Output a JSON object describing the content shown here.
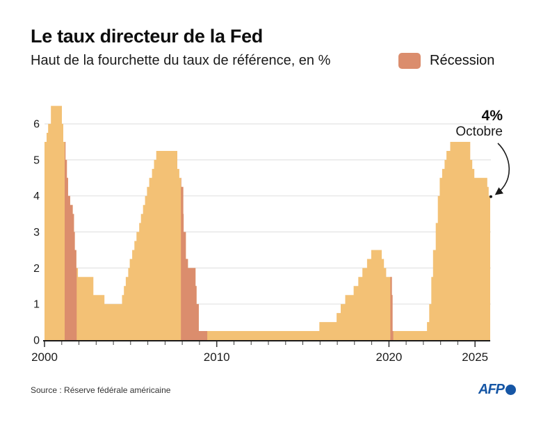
{
  "header": {
    "title": "Le taux directeur de la Fed",
    "subtitle": "Haut de la fourchette du taux de référence, en %"
  },
  "legend": {
    "label": "Récession",
    "color": "#DB8D6D"
  },
  "annotation": {
    "value_label": "4%",
    "month_label": "Octobre"
  },
  "footer": {
    "source": "Source : Réserve fédérale américaine",
    "logo": "AFP"
  },
  "brand": {
    "afp_blue": "#1656A5"
  },
  "chart_data": {
    "type": "area",
    "title": "Le taux directeur de la Fed",
    "subtitle": "Haut de la fourchette du taux de référence, en %",
    "series_name": "Haut de la fourchette du taux de référence de la Fed",
    "unit": "%",
    "grid": "horizontal",
    "legend_position": "top-right",
    "colors": {
      "area": "#F3C175",
      "recession": "#DB8D6D",
      "grid": "#E3E3E3",
      "axis": "#1A1A1A",
      "text": "#1A1A1A"
    },
    "xlim": [
      2000,
      2025.92
    ],
    "ylim": [
      0,
      6.6
    ],
    "yticks": [
      0,
      1,
      2,
      3,
      4,
      5,
      6
    ],
    "xticks_labeled": [
      2000,
      2010,
      2020,
      2025
    ],
    "xtick_step": 1,
    "steps": [
      [
        2000.0,
        5.5
      ],
      [
        2000.12,
        5.75
      ],
      [
        2000.21,
        6.0
      ],
      [
        2000.37,
        6.5
      ],
      [
        2001.01,
        6.0
      ],
      [
        2001.09,
        5.5
      ],
      [
        2001.22,
        5.0
      ],
      [
        2001.3,
        4.5
      ],
      [
        2001.37,
        4.0
      ],
      [
        2001.49,
        3.75
      ],
      [
        2001.64,
        3.5
      ],
      [
        2001.71,
        3.0
      ],
      [
        2001.76,
        2.5
      ],
      [
        2001.85,
        2.0
      ],
      [
        2001.94,
        1.75
      ],
      [
        2002.84,
        1.25
      ],
      [
        2003.48,
        1.0
      ],
      [
        2004.5,
        1.25
      ],
      [
        2004.61,
        1.5
      ],
      [
        2004.72,
        1.75
      ],
      [
        2004.86,
        2.0
      ],
      [
        2004.95,
        2.25
      ],
      [
        2005.09,
        2.5
      ],
      [
        2005.22,
        2.75
      ],
      [
        2005.34,
        3.0
      ],
      [
        2005.5,
        3.25
      ],
      [
        2005.6,
        3.5
      ],
      [
        2005.72,
        3.75
      ],
      [
        2005.84,
        4.0
      ],
      [
        2005.95,
        4.25
      ],
      [
        2006.08,
        4.5
      ],
      [
        2006.24,
        4.75
      ],
      [
        2006.36,
        5.0
      ],
      [
        2006.49,
        5.25
      ],
      [
        2007.71,
        4.75
      ],
      [
        2007.83,
        4.5
      ],
      [
        2007.94,
        4.25
      ],
      [
        2008.06,
        3.5
      ],
      [
        2008.08,
        3.0
      ],
      [
        2008.21,
        2.25
      ],
      [
        2008.33,
        2.0
      ],
      [
        2008.77,
        1.5
      ],
      [
        2008.83,
        1.0
      ],
      [
        2008.96,
        0.25
      ],
      [
        2015.96,
        0.5
      ],
      [
        2016.96,
        0.75
      ],
      [
        2017.2,
        1.0
      ],
      [
        2017.46,
        1.25
      ],
      [
        2017.95,
        1.5
      ],
      [
        2018.22,
        1.75
      ],
      [
        2018.46,
        2.0
      ],
      [
        2018.73,
        2.25
      ],
      [
        2018.97,
        2.5
      ],
      [
        2019.58,
        2.25
      ],
      [
        2019.71,
        2.0
      ],
      [
        2019.84,
        1.75
      ],
      [
        2020.17,
        1.25
      ],
      [
        2020.21,
        0.25
      ],
      [
        2022.21,
        0.5
      ],
      [
        2022.34,
        1.0
      ],
      [
        2022.46,
        1.75
      ],
      [
        2022.56,
        2.5
      ],
      [
        2022.72,
        3.25
      ],
      [
        2022.84,
        4.0
      ],
      [
        2022.95,
        4.5
      ],
      [
        2023.09,
        4.75
      ],
      [
        2023.23,
        5.0
      ],
      [
        2023.34,
        5.25
      ],
      [
        2023.56,
        5.5
      ],
      [
        2024.72,
        5.0
      ],
      [
        2024.84,
        4.75
      ],
      [
        2024.96,
        4.5
      ],
      [
        2025.71,
        4.25
      ],
      [
        2025.79,
        4.0
      ]
    ],
    "end": {
      "x": 2025.88,
      "y": 4.0,
      "label": "4%",
      "sublabel": "Octobre"
    },
    "recessions": [
      [
        2001.17,
        2001.87
      ],
      [
        2007.92,
        2009.45
      ],
      [
        2020.08,
        2020.25
      ]
    ]
  }
}
